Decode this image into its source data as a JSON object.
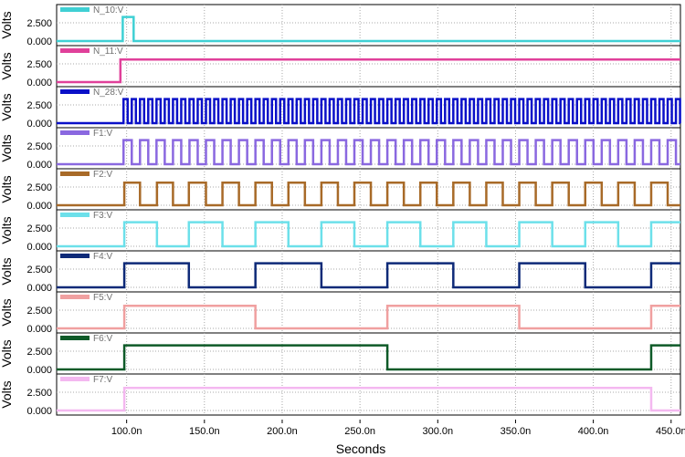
{
  "chart_data": {
    "type": "line",
    "xlabel": "Seconds",
    "ylabel": "Volts",
    "xlim": [
      55,
      456
    ],
    "x_ticks": [
      100,
      150,
      200,
      250,
      300,
      350,
      400,
      450
    ],
    "x_tick_labels": [
      "100.0n",
      "150.0n",
      "200.0n",
      "250.0n",
      "300.0n",
      "350.0n",
      "400.0n",
      "450.0n"
    ],
    "y_tick_labels": [
      "0.000",
      "2.500"
    ],
    "grid": true,
    "series": [
      {
        "name": "N_10:V",
        "color": "#3fd0d4",
        "high": 3.3,
        "style": "pulse",
        "edges": [
          97.5,
          104.5
        ]
      },
      {
        "name": "N_11:V",
        "color": "#e0409a",
        "high": 3.1,
        "style": "step",
        "edges": [
          96
        ]
      },
      {
        "name": "N_28:V",
        "color": "#0a10c8",
        "high": 3.3,
        "style": "square",
        "start": 98,
        "period": 5.3,
        "end": 456
      },
      {
        "name": "F1:V",
        "color": "#8a68e0",
        "high": 3.3,
        "style": "edges",
        "edges": [
          98,
          103.3,
          108.6,
          113.9,
          119.2,
          124.5,
          129.8,
          135.1,
          140.4,
          145.7,
          151,
          156.3,
          161.6,
          166.9,
          172.2,
          177.5,
          182.8,
          188.1,
          193.4,
          198.7,
          204,
          209.3,
          214.6,
          219.9,
          225.2,
          230.5,
          235.8,
          241.1,
          246.4,
          251.7,
          257,
          262.3,
          267.6,
          272.9,
          278.2,
          283.5,
          288.8,
          294.1,
          299.4,
          304.7,
          310,
          315.3,
          320.6,
          325.9,
          331.2,
          336.5,
          341.8,
          347.1,
          352.4,
          357.7,
          363,
          368.3,
          373.6,
          378.9,
          384.2,
          389.5,
          394.8,
          400.1,
          405.4,
          410.7,
          416,
          421.3,
          426.6,
          431.9,
          437.2,
          442.5,
          447.8,
          453.1
        ]
      },
      {
        "name": "F2:V",
        "color": "#a86a28",
        "high": 3.1,
        "style": "edges",
        "edges": [
          98.5,
          108.6,
          119.5,
          129.8,
          140,
          151,
          161.6,
          172.2,
          182.8,
          193.4,
          204,
          214.6,
          225.2,
          235.8,
          246.4,
          257,
          267.6,
          278.2,
          288.8,
          299.4,
          310,
          320.6,
          331.2,
          341.8,
          352.4,
          363,
          373.6,
          384.2,
          394.8,
          405.4,
          416,
          426.6,
          437.2,
          447.8
        ]
      },
      {
        "name": "F3:V",
        "color": "#6ce0ea",
        "high": 3.3,
        "style": "edges",
        "edges": [
          98.5,
          119.5,
          140,
          161.6,
          182.8,
          204,
          225.2,
          246.4,
          267.6,
          288.8,
          310,
          331.2,
          352.4,
          373.6,
          394.8,
          416,
          437.2
        ]
      },
      {
        "name": "F4:V",
        "color": "#0e2a78",
        "high": 3.3,
        "style": "edges",
        "edges": [
          98.5,
          140,
          182.8,
          225.2,
          267.6,
          310,
          352.4,
          394.8,
          437.2
        ]
      },
      {
        "name": "F5:V",
        "color": "#f0a0a0",
        "high": 3.1,
        "style": "edges",
        "edges": [
          98.5,
          182.8,
          267.6,
          352.4,
          437.2
        ]
      },
      {
        "name": "F6:V",
        "color": "#0e5a28",
        "high": 3.3,
        "style": "edges",
        "edges": [
          98.5,
          267.6,
          437.2
        ]
      },
      {
        "name": "F7:V",
        "color": "#f4b8f0",
        "high": 3.1,
        "style": "edges",
        "edges": [
          98.5,
          437.2
        ]
      }
    ]
  }
}
